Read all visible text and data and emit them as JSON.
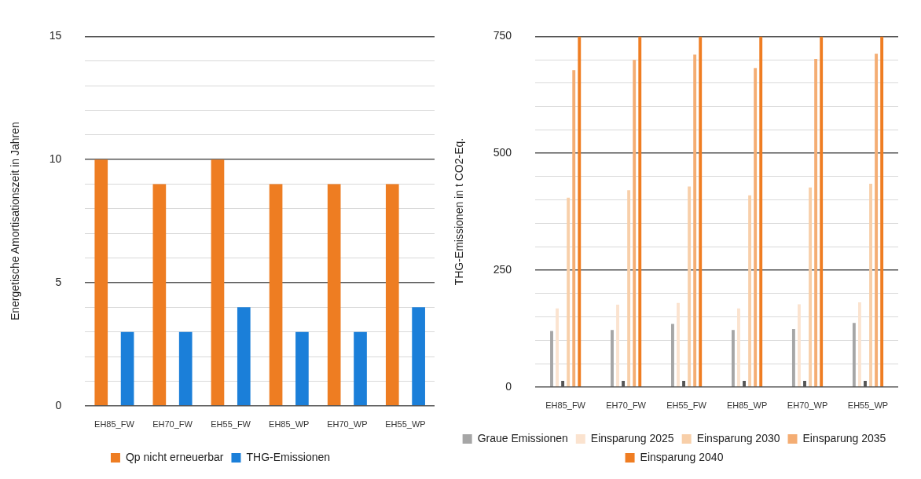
{
  "chart_data": [
    {
      "type": "bar",
      "ylabel": "Energetische Amortisationszeit in Jahren",
      "categories": [
        "EH85_FW",
        "EH70_FW",
        "EH55_FW",
        "EH85_WP",
        "EH70_WP",
        "EH55_WP"
      ],
      "series": [
        {
          "name": "Qp nicht erneuerbar",
          "color": "#ee7d22",
          "values": [
            10,
            9,
            10,
            9,
            9,
            9
          ]
        },
        {
          "name": "THG-Emissionen",
          "color": "#1b7fd9",
          "values": [
            3,
            3,
            4,
            3,
            3,
            4
          ]
        }
      ],
      "ylim": [
        0,
        15
      ],
      "yticks": [
        0,
        {
          "value": 1,
          "label": null
        },
        {
          "value": 2,
          "label": null
        },
        {
          "value": 3,
          "label": null
        },
        {
          "value": 4,
          "label": null
        },
        5,
        {
          "value": 6,
          "label": null
        },
        {
          "value": 7,
          "label": null
        },
        {
          "value": 8,
          "label": null
        },
        {
          "value": 9,
          "label": null
        },
        10,
        {
          "value": 11,
          "label": null
        },
        {
          "value": 12,
          "label": null
        },
        {
          "value": 13,
          "label": null
        },
        {
          "value": 14,
          "label": null
        },
        15
      ],
      "grid": "y",
      "legend": "bottom"
    },
    {
      "type": "bar",
      "ylabel": "THG-Emissionen in t CO2-Eq.",
      "categories": [
        "EH85_FW",
        "EH70_FW",
        "EH55_FW",
        "EH85_WP",
        "EH70_WP",
        "EH55_WP"
      ],
      "series": [
        {
          "name": "Graue Emissionen",
          "color": "#a6a6a6",
          "values": [
            120,
            122,
            135,
            122,
            124,
            137
          ]
        },
        {
          "name": "Einsparung 2025",
          "color": "#fbe3cf",
          "values": [
            168,
            176,
            180,
            168,
            177,
            181
          ]
        },
        {
          "color": "#555555",
          "values": [
            13,
            13,
            13,
            13,
            13,
            13
          ]
        },
        {
          "name": "Einsparung 2030",
          "color": "#f8cfa9",
          "values": [
            405,
            421,
            429,
            410,
            427,
            435
          ]
        },
        {
          "name": "Einsparung 2035",
          "color": "#f4ad73",
          "values": [
            678,
            700,
            711,
            682,
            702,
            713
          ]
        },
        {
          "name": "Einsparung 2040",
          "color": "#ef7d22",
          "values": [
            750,
            750,
            750,
            750,
            750,
            750
          ]
        }
      ],
      "ylim": [
        0,
        750
      ],
      "yticks": [
        0,
        {
          "value": 50,
          "label": null
        },
        {
          "value": 100,
          "label": null
        },
        {
          "value": 150,
          "label": null
        },
        {
          "value": 200,
          "label": null
        },
        250,
        {
          "value": 300,
          "label": null
        },
        {
          "value": 350,
          "label": null
        },
        {
          "value": 400,
          "label": null
        },
        {
          "value": 450,
          "label": null
        },
        500,
        {
          "value": 550,
          "label": null
        },
        {
          "value": 600,
          "label": null
        },
        {
          "value": 650,
          "label": null
        },
        {
          "value": 700,
          "label": null
        },
        750
      ],
      "grid": "y",
      "legend": "bottom"
    }
  ]
}
